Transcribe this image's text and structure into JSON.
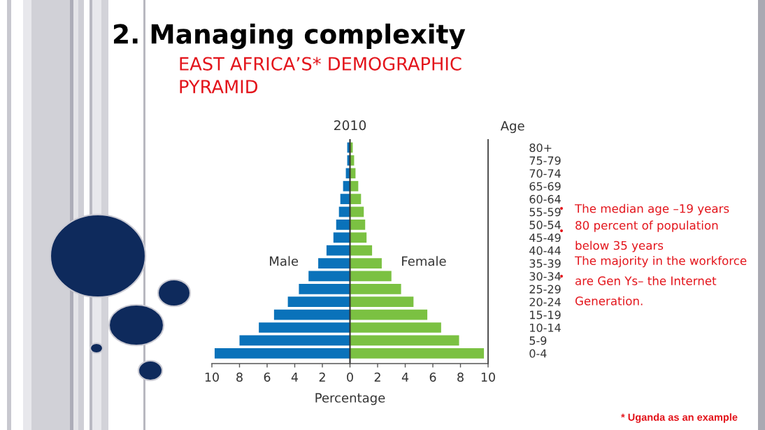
{
  "chart_data": {
    "type": "bar",
    "orientation": "horizontal",
    "stacked": true,
    "title": "2. Managing complexity",
    "subtitle": "EAST AFRICA’S* DEMOGRAPHIC PYRAMID",
    "xlabel": "Percentage",
    "ylabel": "Age",
    "categories": [
      "80+",
      "75-79",
      "70-74",
      "65-69",
      "60-64",
      "55-59",
      "50-54",
      "45-49",
      "40-44",
      "35-39",
      "30-34",
      "25-29",
      "20-24",
      "15-19",
      "10-14",
      "5-9",
      "0-4"
    ],
    "series": [
      {
        "name": "Male",
        "color": "#0a72ba",
        "values": [
          -0.2,
          -0.2,
          -0.3,
          -0.5,
          -0.7,
          -0.8,
          -1.0,
          -1.2,
          -1.7,
          -2.3,
          -3.0,
          -3.7,
          -4.5,
          -5.5,
          -6.6,
          -8.0,
          -9.8
        ]
      },
      {
        "name": "Female",
        "color": "#7bc142",
        "values": [
          0.2,
          0.3,
          0.4,
          0.6,
          0.8,
          1.0,
          1.1,
          1.2,
          1.6,
          2.3,
          3.0,
          3.7,
          4.6,
          5.6,
          6.6,
          7.9,
          9.7
        ]
      }
    ],
    "xlim": [
      -10,
      10
    ],
    "xticks": [
      {
        "value": -10,
        "label": "10"
      },
      {
        "value": -8,
        "label": "8"
      },
      {
        "value": -6,
        "label": "6"
      },
      {
        "value": -4,
        "label": "4"
      },
      {
        "value": -2,
        "label": "2"
      },
      0,
      2,
      4,
      6,
      8,
      10
    ],
    "annotations": [
      "2010",
      "The median age –19 years",
      "80 percent of population below 35 years",
      "The majority in the workforce are Gen Ys– the Internet Generation.",
      "* Uganda as an example"
    ]
  }
}
